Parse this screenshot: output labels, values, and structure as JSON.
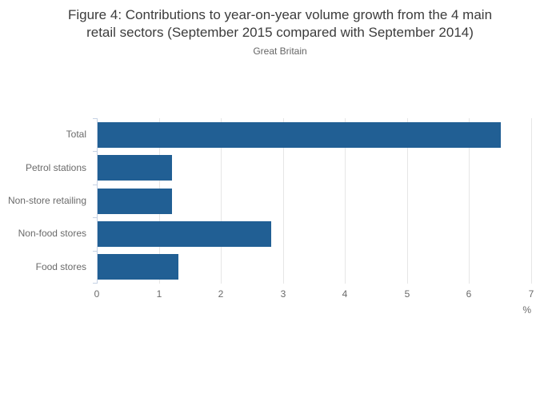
{
  "figure": {
    "title": "Figure 4: Contributions to year-on-year volume growth from the 4 main retail sectors (September 2015 compared with September 2014)",
    "title_lines": [
      "Figure 4: Contributions to year-on-year volume growth from the 4 main",
      "retail sectors (September 2015 compared with September 2014)"
    ],
    "subtitle": "Great Britain"
  },
  "chart_data": {
    "type": "bar",
    "orientation": "horizontal",
    "title": "Figure 4: Contributions to year-on-year volume growth from the 4 main retail sectors (September 2015 compared with September 2014)",
    "subtitle": "Great Britain",
    "categories": [
      "Total",
      "Petrol stations",
      "Non-store retailing",
      "Non-food stores",
      "Food stores"
    ],
    "values": [
      6.5,
      1.2,
      1.2,
      2.8,
      1.3
    ],
    "xlabel": "%",
    "ylabel": "",
    "xlim": [
      0,
      7
    ],
    "xticks": [
      0,
      1,
      2,
      3,
      4,
      5,
      6,
      7
    ],
    "grid": true,
    "legend": "none",
    "colors": {
      "bar": "#215f94",
      "grid": "#e6e6e6",
      "axis": "#c6d2e4",
      "tick_label": "#6a6a6a",
      "category_label": "#6a6a6a",
      "title": "#3c3c3c",
      "subtitle": "#666666",
      "background": "#ffffff"
    }
  }
}
